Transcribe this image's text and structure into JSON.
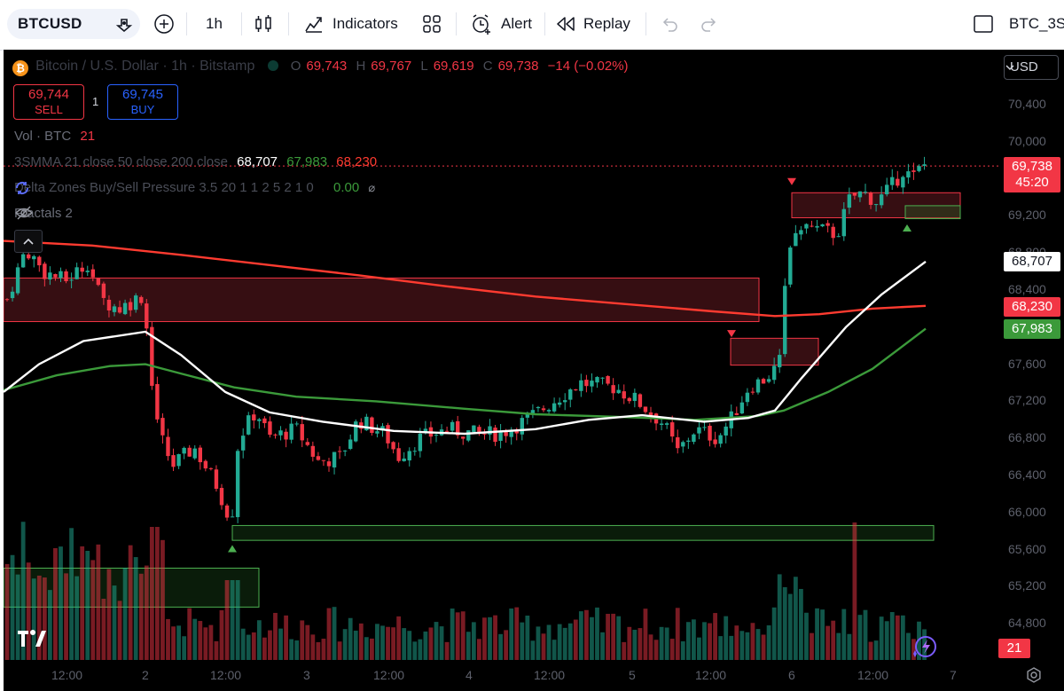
{
  "toolbar": {
    "symbol": "BTCUSD",
    "interval": "1h",
    "indicators": "Indicators",
    "alert": "Alert",
    "replay": "Replay",
    "layout_name": "BTC_3S"
  },
  "legend": {
    "title": "Bitcoin / U.S. Dollar · 1h · Bitstamp",
    "o_label": "O",
    "h_label": "H",
    "l_label": "L",
    "c_label": "C",
    "open": "69,743",
    "high": "69,767",
    "low": "69,619",
    "close": "69,738",
    "change": "−14 (−0.02%)",
    "vol_label": "Vol · BTC",
    "vol_value": "21",
    "ma_label": "3SMMA 21 close 50 close 200 close",
    "ma21": "68,707",
    "ma50": "67,983",
    "ma200": "68,230",
    "delta_label": "Delta Zones Buy/Sell Pressure 3.5 20 1 1 2 5 2 1 0",
    "delta_value": "0.00",
    "fractals_label": "Fractals 2"
  },
  "trade": {
    "sell_price": "69,744",
    "sell_label": "SELL",
    "qty": "1",
    "buy_price": "69,745",
    "buy_label": "BUY"
  },
  "currency": "USD",
  "price_labels": {
    "last": "69,738",
    "countdown": "45:20",
    "ma21": "68,707",
    "ma200": "68,230",
    "ma50": "67,983",
    "volume": "21"
  },
  "colors": {
    "up": "#22ab94",
    "down": "#f23645",
    "ma21": "#ffffff",
    "ma50": "#3b9a3a",
    "ma200": "#ff3b30",
    "background": "#000000"
  },
  "chart_data": {
    "type": "candlestick",
    "symbol": "BTCUSD",
    "interval": "1h",
    "ylim": [
      64600,
      70800
    ],
    "y_ticks": [
      "70,400",
      "70,000",
      "69,600",
      "69,200",
      "68,800",
      "68,400",
      "68,000",
      "67,600",
      "67,200",
      "66,800",
      "66,400",
      "66,000",
      "65,600",
      "65,200",
      "64,800"
    ],
    "x_ticks": [
      "12:00",
      "2",
      "12:00",
      "3",
      "12:00",
      "4",
      "12:00",
      "5",
      "12:00",
      "6",
      "12:00",
      "7"
    ],
    "last_price": 69738,
    "moving_averages": [
      {
        "name": "SMMA 21",
        "last": 68707
      },
      {
        "name": "SMMA 50",
        "last": 67983
      },
      {
        "name": "SMMA 200",
        "last": 68230
      }
    ]
  }
}
